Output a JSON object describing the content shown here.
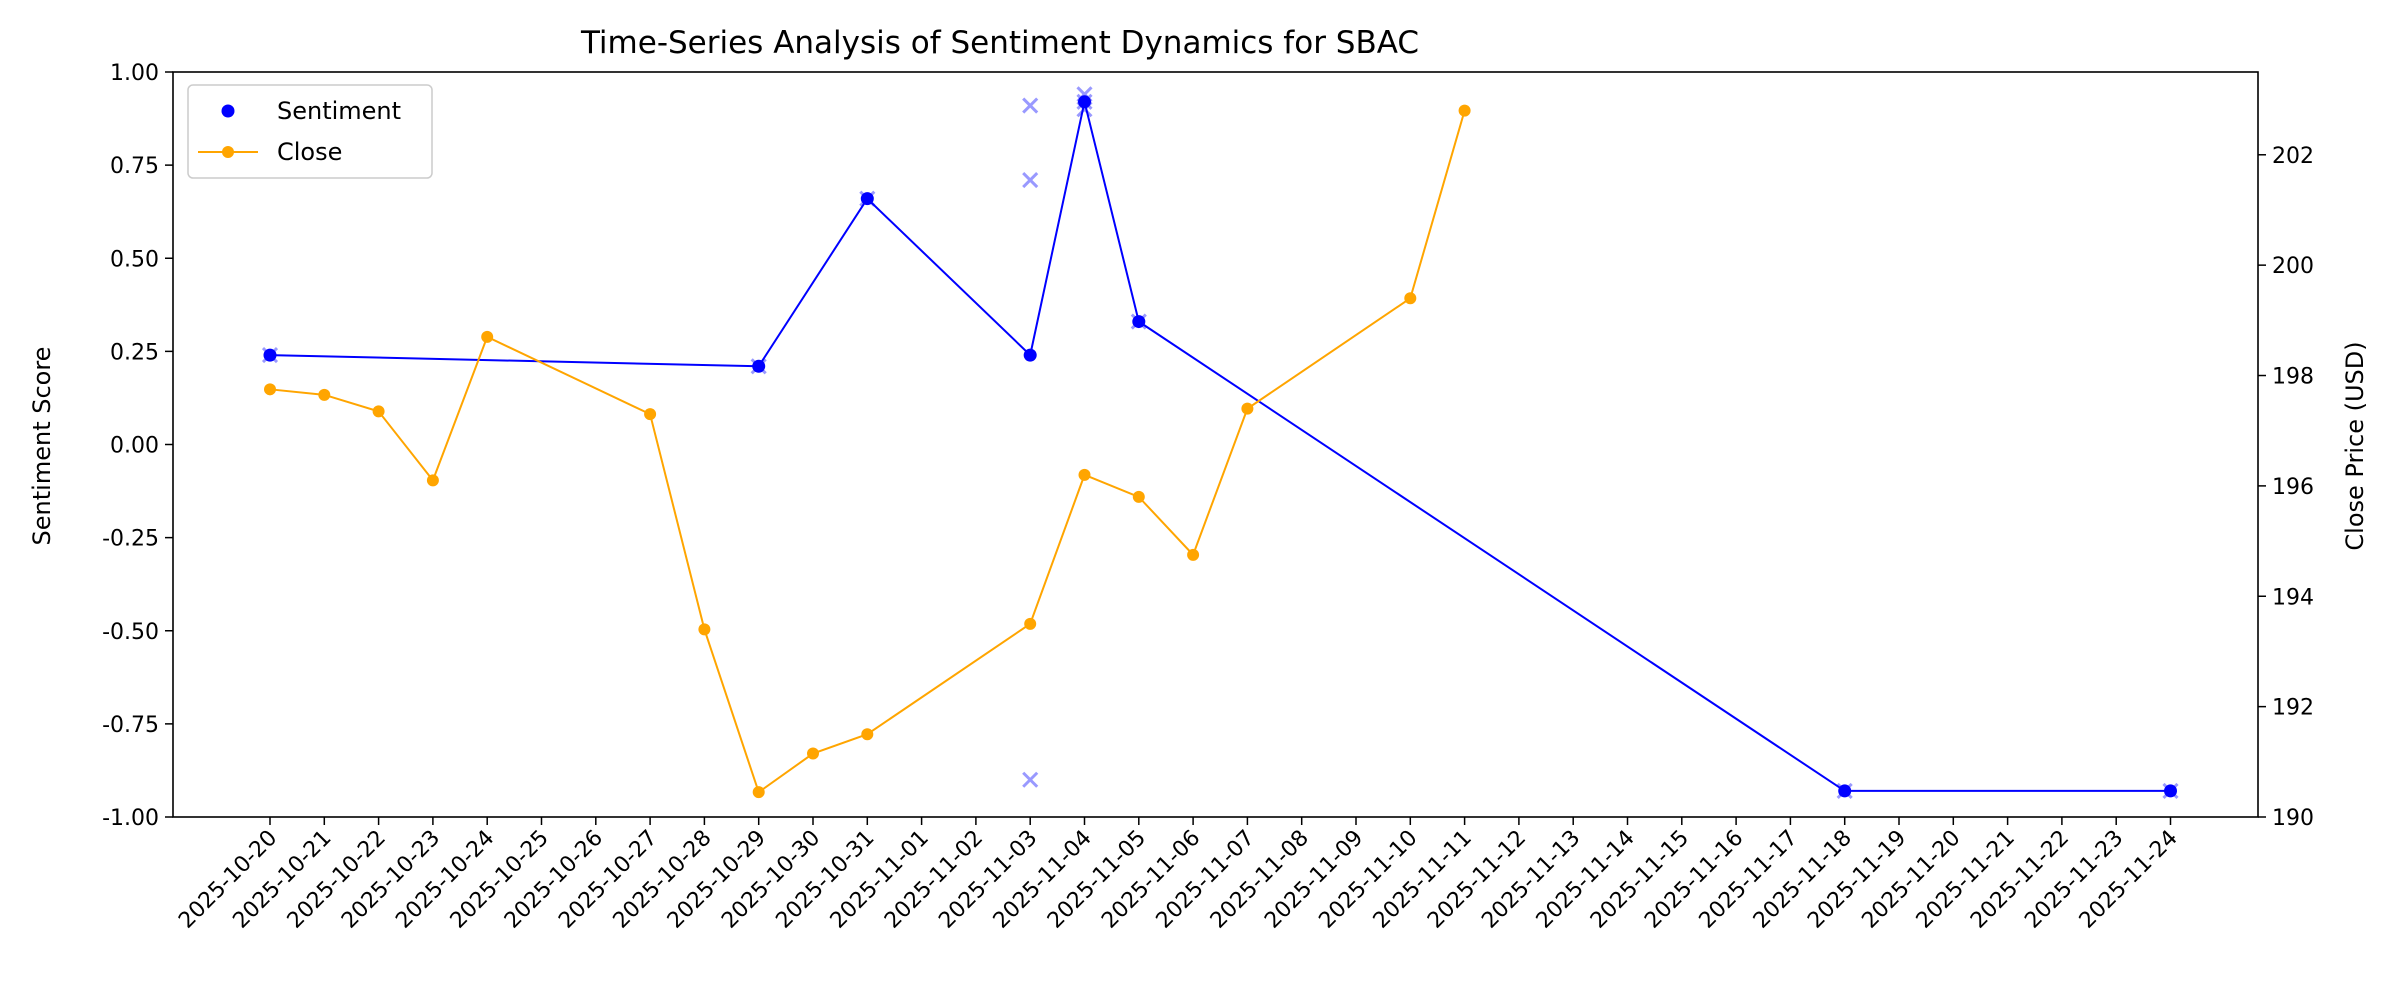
{
  "chart_data": {
    "type": "line",
    "title": "Time-Series Analysis of Sentiment Dynamics for SBAC",
    "xlabel": "",
    "ylabel": "Sentiment Score",
    "y2label": "Close Price (USD)",
    "ylim": [
      -1.0,
      1.0
    ],
    "y2lim": [
      190.0,
      203.5
    ],
    "y_ticks": [
      "-1.00",
      "-0.75",
      "-0.50",
      "-0.25",
      "0.00",
      "0.25",
      "0.50",
      "0.75",
      "1.00"
    ],
    "y2_ticks": [
      "190",
      "192",
      "194",
      "196",
      "198",
      "200",
      "202"
    ],
    "x": [
      "2025-10-20",
      "2025-10-21",
      "2025-10-22",
      "2025-10-23",
      "2025-10-24",
      "2025-10-25",
      "2025-10-26",
      "2025-10-27",
      "2025-10-28",
      "2025-10-29",
      "2025-10-30",
      "2025-10-31",
      "2025-11-01",
      "2025-11-02",
      "2025-11-03",
      "2025-11-04",
      "2025-11-05",
      "2025-11-06",
      "2025-11-07",
      "2025-11-08",
      "2025-11-09",
      "2025-11-10",
      "2025-11-11",
      "2025-11-12",
      "2025-11-13",
      "2025-11-14",
      "2025-11-15",
      "2025-11-16",
      "2025-11-17",
      "2025-11-18",
      "2025-11-19",
      "2025-11-20",
      "2025-11-21",
      "2025-11-22",
      "2025-11-23",
      "2025-11-24"
    ],
    "grid": false,
    "legend_position": "top-left",
    "colors": {
      "sentiment": "#0000ff",
      "close": "#ffa500",
      "raw": "#9999ff"
    },
    "series": [
      {
        "name": "Sentiment",
        "axis": "left",
        "marker": "circle",
        "points": [
          {
            "date": "2025-10-20",
            "value": 0.24
          },
          {
            "date": "2025-10-29",
            "value": 0.21
          },
          {
            "date": "2025-10-31",
            "value": 0.66
          },
          {
            "date": "2025-11-03",
            "value": 0.24
          },
          {
            "date": "2025-11-04",
            "value": 0.92
          },
          {
            "date": "2025-11-05",
            "value": 0.33
          },
          {
            "date": "2025-11-18",
            "value": -0.93
          },
          {
            "date": "2025-11-24",
            "value": -0.93
          }
        ]
      },
      {
        "name": "Close",
        "axis": "right",
        "marker": "circle",
        "points": [
          {
            "date": "2025-10-20",
            "value": 197.75
          },
          {
            "date": "2025-10-21",
            "value": 197.65
          },
          {
            "date": "2025-10-22",
            "value": 197.35
          },
          {
            "date": "2025-10-23",
            "value": 196.1
          },
          {
            "date": "2025-10-24",
            "value": 198.7
          },
          {
            "date": "2025-10-27",
            "value": 197.3
          },
          {
            "date": "2025-10-28",
            "value": 193.4
          },
          {
            "date": "2025-10-29",
            "value": 190.45
          },
          {
            "date": "2025-10-30",
            "value": 191.15
          },
          {
            "date": "2025-10-31",
            "value": 191.5
          },
          {
            "date": "2025-11-03",
            "value": 193.5
          },
          {
            "date": "2025-11-04",
            "value": 196.2
          },
          {
            "date": "2025-11-05",
            "value": 195.8
          },
          {
            "date": "2025-11-06",
            "value": 194.75
          },
          {
            "date": "2025-11-07",
            "value": 197.4
          },
          {
            "date": "2025-11-10",
            "value": 199.4
          },
          {
            "date": "2025-11-11",
            "value": 202.8
          }
        ]
      }
    ],
    "raw_points": [
      {
        "date": "2025-10-20",
        "value": 0.24
      },
      {
        "date": "2025-10-29",
        "value": 0.21
      },
      {
        "date": "2025-10-31",
        "value": 0.66
      },
      {
        "date": "2025-11-03",
        "value": 0.91
      },
      {
        "date": "2025-11-03",
        "value": 0.71
      },
      {
        "date": "2025-11-03",
        "value": -0.9
      },
      {
        "date": "2025-11-04",
        "value": 0.94
      },
      {
        "date": "2025-11-04",
        "value": 0.92
      },
      {
        "date": "2025-11-04",
        "value": 0.9
      },
      {
        "date": "2025-11-05",
        "value": 0.33
      },
      {
        "date": "2025-11-18",
        "value": -0.93
      },
      {
        "date": "2025-11-24",
        "value": -0.93
      }
    ]
  }
}
